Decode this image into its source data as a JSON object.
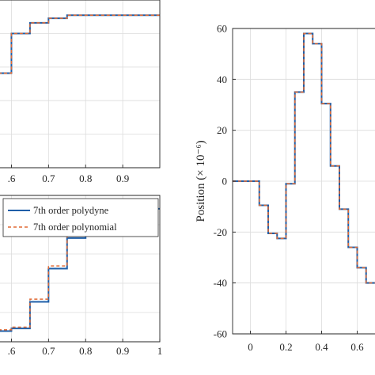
{
  "colors": {
    "polydyne": "#1f5fa8",
    "polynomial": "#e06a35",
    "grid": "#dcdcdc",
    "axis": "#262626"
  },
  "chart_data": [
    {
      "id": "top-left",
      "type": "line",
      "title": "",
      "xlabel": "",
      "ylabel": "",
      "xlim": [
        0.55,
        1.0
      ],
      "ylim": [
        0,
        1.1
      ],
      "x_ticks": [
        0.6,
        0.7,
        0.8,
        0.9
      ],
      "x_tick_labels": [
        ".6",
        "0.7",
        "0.8",
        "0.9"
      ],
      "grid": true,
      "series": [
        {
          "name": "",
          "style": "solid",
          "x": [
            0.55,
            0.6,
            0.6,
            0.65,
            0.65,
            0.7,
            0.7,
            0.75,
            0.75,
            1.0
          ],
          "y": [
            0.62,
            0.62,
            0.88,
            0.88,
            0.95,
            0.95,
            0.98,
            0.98,
            1.0,
            1.0
          ]
        },
        {
          "name": "",
          "style": "dashed",
          "x": [
            0.55,
            0.6,
            0.6,
            0.65,
            0.65,
            0.7,
            0.7,
            0.75,
            0.75,
            1.0
          ],
          "y": [
            0.62,
            0.62,
            0.88,
            0.88,
            0.95,
            0.95,
            0.98,
            0.98,
            1.0,
            1.0
          ]
        }
      ]
    },
    {
      "id": "bottom-left",
      "type": "line",
      "title": "",
      "xlabel": "",
      "ylabel": "",
      "xlim": [
        0.55,
        1.0
      ],
      "ylim": [
        0,
        1.1
      ],
      "x_ticks": [
        0.6,
        0.7,
        0.8,
        0.9,
        1.0
      ],
      "x_tick_labels": [
        ".6",
        "0.7",
        "0.8",
        "0.9",
        "1"
      ],
      "grid": true,
      "legend_placement": "top-right",
      "series": [
        {
          "name": "7th order polydyne",
          "style": "solid",
          "x": [
            0.55,
            0.6,
            0.6,
            0.65,
            0.65,
            0.7,
            0.7,
            0.75,
            0.75,
            0.8,
            0.8,
            0.85,
            0.85,
            1.0
          ],
          "y": [
            0.08,
            0.08,
            0.1,
            0.1,
            0.3,
            0.3,
            0.55,
            0.55,
            0.78,
            0.78,
            0.88,
            0.88,
            1.0,
            1.0
          ]
        },
        {
          "name": "7th order polynomial",
          "style": "dashed",
          "x": [
            0.55,
            0.6,
            0.6,
            0.65,
            0.65,
            0.7,
            0.7,
            0.75,
            0.75,
            0.8,
            0.8,
            0.85,
            0.85,
            1.0
          ],
          "y": [
            0.09,
            0.09,
            0.11,
            0.11,
            0.32,
            0.32,
            0.57,
            0.57,
            0.8,
            0.8,
            0.9,
            0.9,
            1.0,
            1.0
          ]
        }
      ]
    },
    {
      "id": "right",
      "type": "line",
      "title": "",
      "xlabel": "",
      "ylabel": "Position (× 10⁻⁶)",
      "xlim": [
        -0.1,
        0.7
      ],
      "ylim": [
        -60,
        60
      ],
      "x_ticks": [
        0,
        0.2,
        0.4,
        0.6
      ],
      "x_tick_labels": [
        "0",
        "0.2",
        "0.4",
        "0.6"
      ],
      "y_ticks": [
        -60,
        -40,
        -20,
        0,
        20,
        40,
        60
      ],
      "y_tick_labels": [
        "-60",
        "-40",
        "-20",
        "0",
        "20",
        "40",
        "60"
      ],
      "grid": true,
      "series": [
        {
          "name": "",
          "style": "solid",
          "x": [
            -0.1,
            0.05,
            0.05,
            0.1,
            0.1,
            0.15,
            0.15,
            0.2,
            0.2,
            0.25,
            0.25,
            0.3,
            0.3,
            0.35,
            0.35,
            0.4,
            0.4,
            0.45,
            0.45,
            0.5,
            0.5,
            0.55,
            0.55,
            0.6,
            0.6,
            0.65,
            0.65,
            0.7
          ],
          "y": [
            0,
            0,
            -9.5,
            -9.5,
            -20.5,
            -20.5,
            -22.5,
            -22.5,
            -1,
            -1,
            35,
            35,
            58,
            58,
            54,
            54,
            30.5,
            30.5,
            6,
            6,
            -11,
            -11,
            -26,
            -26,
            -34,
            -34,
            -40,
            -40
          ]
        },
        {
          "name": "",
          "style": "dashed",
          "x": [
            -0.1,
            0.05,
            0.05,
            0.1,
            0.1,
            0.15,
            0.15,
            0.2,
            0.2,
            0.25,
            0.25,
            0.3,
            0.3,
            0.35,
            0.35,
            0.4,
            0.4,
            0.45,
            0.45,
            0.5,
            0.5,
            0.55,
            0.55,
            0.6,
            0.6,
            0.65,
            0.65,
            0.7
          ],
          "y": [
            0,
            0,
            -9.5,
            -9.5,
            -20.5,
            -20.5,
            -22.5,
            -22.5,
            -1,
            -1,
            35,
            35,
            58,
            58,
            54,
            54,
            30.5,
            30.5,
            6,
            6,
            -11,
            -11,
            -26,
            -26,
            -34,
            -34,
            -40,
            -40
          ]
        }
      ]
    }
  ]
}
